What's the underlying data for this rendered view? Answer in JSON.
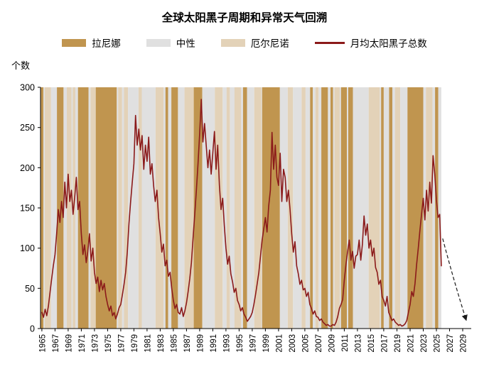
{
  "title": "全球太阳黑子周期和异常天气回溯",
  "y_axis_label": "个数",
  "legend": [
    {
      "label": "拉尼娜",
      "color": "#C0954F",
      "type": "box"
    },
    {
      "label": "中性",
      "color": "#E0E0E0",
      "type": "box"
    },
    {
      "label": "厄尔尼诺",
      "color": "#E3D2B8",
      "type": "box"
    },
    {
      "label": "月均太阳黑子总数",
      "color": "#8B1A1A",
      "type": "line"
    }
  ],
  "chart_data": {
    "type": "line",
    "title": "全球太阳黑子周期和异常天气回溯",
    "xlabel": "",
    "ylabel": "个数",
    "ylim": [
      0,
      300
    ],
    "yticks": [
      0,
      50,
      100,
      150,
      200,
      250,
      300
    ],
    "xlim": [
      1964.8,
      2030.3
    ],
    "xticks": [
      1965,
      1967,
      1969,
      1971,
      1973,
      1975,
      1977,
      1979,
      1981,
      1983,
      1985,
      1987,
      1989,
      1991,
      1993,
      1995,
      1997,
      1999,
      2001,
      2003,
      2005,
      2007,
      2009,
      2011,
      2013,
      2015,
      2017,
      2019,
      2021,
      2023,
      2025,
      2027,
      2029
    ],
    "grid": false,
    "legend_position": "top",
    "band_colors": {
      "ln": "#C0954F",
      "nt": "#E0E0E0",
      "en": "#E3D2B8"
    },
    "band_states": {
      "ln": "拉尼娜",
      "nt": "中性",
      "en": "厄尔尼诺"
    },
    "bands": [
      [
        1964.8,
        1965.25,
        "ln"
      ],
      [
        1965.25,
        1965.45,
        "nt"
      ],
      [
        1965.45,
        1966.4,
        "en"
      ],
      [
        1966.4,
        1967.3,
        "nt"
      ],
      [
        1967.3,
        1968.3,
        "ln"
      ],
      [
        1968.3,
        1968.8,
        "nt"
      ],
      [
        1968.8,
        1969.5,
        "en"
      ],
      [
        1969.5,
        1969.7,
        "nt"
      ],
      [
        1969.7,
        1970.1,
        "en"
      ],
      [
        1970.1,
        1970.5,
        "nt"
      ],
      [
        1970.5,
        1972.1,
        "ln"
      ],
      [
        1972.1,
        1972.4,
        "nt"
      ],
      [
        1972.4,
        1973.2,
        "en"
      ],
      [
        1973.2,
        1976.4,
        "ln"
      ],
      [
        1976.4,
        1976.6,
        "nt"
      ],
      [
        1976.6,
        1977.2,
        "en"
      ],
      [
        1977.2,
        1977.5,
        "nt"
      ],
      [
        1977.5,
        1978.1,
        "en"
      ],
      [
        1978.1,
        1979.7,
        "nt"
      ],
      [
        1979.7,
        1980.2,
        "en"
      ],
      [
        1980.2,
        1982.3,
        "nt"
      ],
      [
        1982.3,
        1983.5,
        "en"
      ],
      [
        1983.5,
        1983.8,
        "nt"
      ],
      [
        1983.8,
        1984.2,
        "ln"
      ],
      [
        1984.2,
        1984.7,
        "nt"
      ],
      [
        1984.7,
        1985.7,
        "ln"
      ],
      [
        1985.7,
        1986.7,
        "nt"
      ],
      [
        1986.7,
        1988.1,
        "en"
      ],
      [
        1988.1,
        1989.4,
        "ln"
      ],
      [
        1989.4,
        1991.3,
        "nt"
      ],
      [
        1991.3,
        1992.5,
        "en"
      ],
      [
        1992.5,
        1993.1,
        "nt"
      ],
      [
        1993.1,
        1993.6,
        "en"
      ],
      [
        1993.6,
        1994.3,
        "nt"
      ],
      [
        1994.3,
        1995.3,
        "en"
      ],
      [
        1995.3,
        1995.6,
        "nt"
      ],
      [
        1995.6,
        1996.2,
        "ln"
      ],
      [
        1996.2,
        1997.3,
        "nt"
      ],
      [
        1997.3,
        1998.4,
        "en"
      ],
      [
        1998.4,
        1998.5,
        "nt"
      ],
      [
        1998.5,
        2001.2,
        "ln"
      ],
      [
        2001.2,
        2002.4,
        "nt"
      ],
      [
        2002.4,
        2003.2,
        "en"
      ],
      [
        2003.2,
        2004.5,
        "nt"
      ],
      [
        2004.5,
        2005.1,
        "en"
      ],
      [
        2005.1,
        2005.8,
        "nt"
      ],
      [
        2005.8,
        2006.2,
        "ln"
      ],
      [
        2006.2,
        2006.6,
        "nt"
      ],
      [
        2006.6,
        2007.1,
        "en"
      ],
      [
        2007.1,
        2007.5,
        "nt"
      ],
      [
        2007.5,
        2008.5,
        "ln"
      ],
      [
        2008.5,
        2008.9,
        "nt"
      ],
      [
        2008.9,
        2009.3,
        "ln"
      ],
      [
        2009.3,
        2009.5,
        "nt"
      ],
      [
        2009.5,
        2010.3,
        "en"
      ],
      [
        2010.3,
        2010.5,
        "nt"
      ],
      [
        2010.5,
        2011.4,
        "ln"
      ],
      [
        2011.4,
        2011.6,
        "nt"
      ],
      [
        2011.6,
        2012.3,
        "ln"
      ],
      [
        2012.3,
        2014.7,
        "nt"
      ],
      [
        2014.7,
        2016.4,
        "en"
      ],
      [
        2016.4,
        2016.6,
        "nt"
      ],
      [
        2016.6,
        2017.0,
        "ln"
      ],
      [
        2017.0,
        2017.8,
        "nt"
      ],
      [
        2017.8,
        2018.3,
        "ln"
      ],
      [
        2018.3,
        2018.7,
        "nt"
      ],
      [
        2018.7,
        2019.5,
        "en"
      ],
      [
        2019.5,
        2020.6,
        "nt"
      ],
      [
        2020.6,
        2023.0,
        "ln"
      ],
      [
        2023.0,
        2023.4,
        "nt"
      ],
      [
        2023.4,
        2024.4,
        "en"
      ],
      [
        2024.4,
        2024.8,
        "nt"
      ],
      [
        2024.8,
        2025.3,
        "ln"
      ],
      [
        2025.3,
        2025.75,
        "nt"
      ]
    ],
    "series": [
      {
        "name": "月均太阳黑子总数",
        "color": "#8B1A1A",
        "x_start": 1965.0,
        "x_step": 0.25,
        "values": [
          20,
          14,
          24,
          16,
          28,
          45,
          62,
          78,
          92,
          118,
          148,
          132,
          158,
          138,
          182,
          150,
          192,
          158,
          172,
          142,
          163,
          188,
          148,
          158,
          118,
          92,
          104,
          82,
          96,
          118,
          84,
          100,
          70,
          56,
          64,
          46,
          60,
          48,
          56,
          40,
          30,
          22,
          28,
          16,
          20,
          12,
          18,
          26,
          30,
          42,
          55,
          70,
          95,
          130,
          158,
          182,
          205,
          265,
          228,
          248,
          222,
          240,
          198,
          228,
          208,
          238,
          192,
          205,
          178,
          158,
          172,
          138,
          118,
          95,
          105,
          78,
          85,
          65,
          70,
          50,
          35,
          25,
          30,
          20,
          18,
          26,
          15,
          22,
          32,
          46,
          62,
          82,
          112,
          142,
          172,
          205,
          242,
          285,
          232,
          255,
          228,
          200,
          222,
          192,
          218,
          245,
          198,
          228,
          178,
          148,
          162,
          128,
          100,
          80,
          90,
          68,
          58,
          45,
          50,
          35,
          30,
          22,
          26,
          18,
          14,
          9,
          12,
          15,
          20,
          30,
          42,
          56,
          70,
          90,
          110,
          124,
          138,
          120,
          152,
          172,
          244,
          198,
          228,
          188,
          178,
          218,
          158,
          198,
          188,
          158,
          172,
          148,
          118,
          95,
          108,
          78,
          68,
          55,
          60,
          48,
          50,
          40,
          45,
          30,
          25,
          18,
          22,
          15,
          14,
          10,
          12,
          8,
          6,
          4,
          5,
          3,
          3,
          5,
          4,
          8,
          15,
          25,
          30,
          36,
          60,
          80,
          96,
          110,
          85,
          96,
          75,
          90,
          92,
          110,
          85,
          105,
          140,
          116,
          130,
          100,
          110,
          90,
          100,
          76,
          70,
          55,
          60,
          40,
          35,
          28,
          40,
          20,
          15,
          10,
          12,
          8,
          6,
          4,
          5,
          3,
          4,
          6,
          10,
          20,
          30,
          46,
          40,
          56,
          80,
          100,
          122,
          142,
          162,
          135,
          172,
          146,
          182,
          156,
          215,
          192,
          160,
          138,
          142,
          78
        ]
      }
    ],
    "projection_arrow": {
      "from": [
        2025.95,
        112
      ],
      "ctrl": [
        2027.7,
        58
      ],
      "to": [
        2029.55,
        10
      ]
    }
  }
}
